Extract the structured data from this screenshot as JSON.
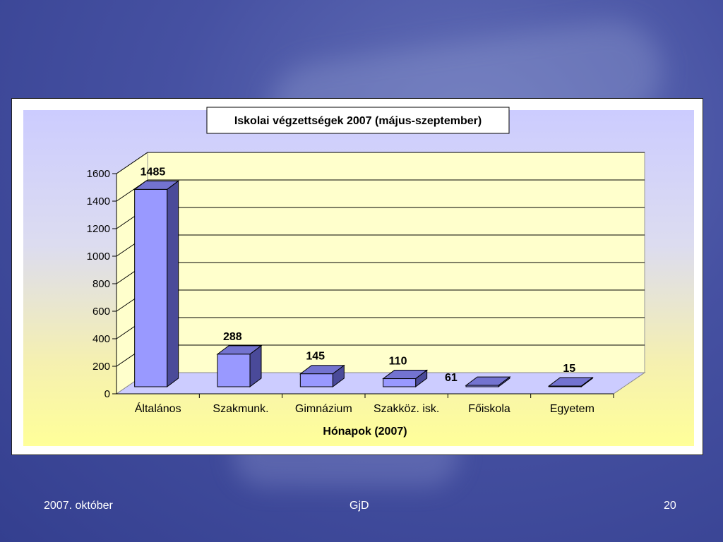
{
  "chart_data": {
    "type": "bar",
    "title": "Iskolai végzettségek 2007 (május-szeptember)",
    "xlabel": "Hónapok (2007)",
    "ylabel": "",
    "categories": [
      "Általános",
      "Szakmunk.",
      "Gimnázium",
      "Szakköz. isk.",
      "Főiskola",
      "Egyetem"
    ],
    "values": [
      1485,
      288,
      145,
      110,
      61,
      15
    ],
    "data_labels": [
      "1485",
      "288",
      "145",
      "110",
      "61",
      "15"
    ],
    "ylim": [
      0,
      1600
    ],
    "yticks": [
      "0",
      "200",
      "400",
      "600",
      "800",
      "1000",
      "1200",
      "1400",
      "1600"
    ],
    "grid": true,
    "legend": "none",
    "colors": {
      "bar_front": "#9999ff",
      "bar_side": "#4a4a99",
      "bar_top": "#7373d0",
      "floor": "#ccccff",
      "wall": "#ffffcc"
    }
  },
  "footer": {
    "date": "2007. október",
    "author": "GjD",
    "page": "20"
  }
}
